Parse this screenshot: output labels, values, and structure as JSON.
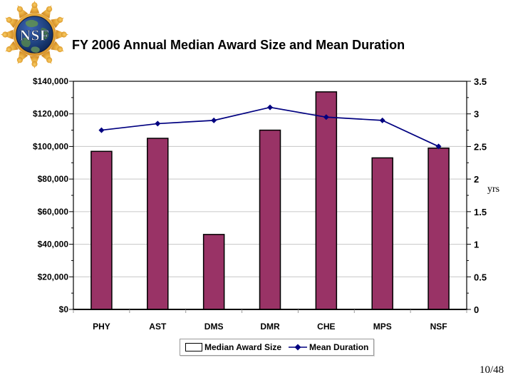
{
  "page": {
    "page_number": "10/48"
  },
  "logo": {
    "name": "nsf-logo",
    "text": "NSF"
  },
  "colors": {
    "bar_fill": "#993366",
    "bar_border": "#000000",
    "line": "#000080",
    "gridline": "#C6C6C6",
    "axis_text": "#000000",
    "logo_gold": "#E2A33B",
    "logo_globe": "#16356F"
  },
  "chart_data": {
    "type": "bar",
    "subtype": "bar-line-combo",
    "title": "FY 2006 Annual Median Award Size and Mean Duration",
    "categories": [
      "PHY",
      "AST",
      "DMS",
      "DMR",
      "CHE",
      "MPS",
      "NSF"
    ],
    "series": [
      {
        "name": "Median Award Size",
        "type": "bar",
        "axis": "left",
        "color": "#993366",
        "values": [
          97000,
          105000,
          46000,
          110000,
          133500,
          93000,
          99000
        ]
      },
      {
        "name": "Mean Duration",
        "type": "line",
        "axis": "right",
        "color": "#000080",
        "marker": "diamond",
        "values": [
          2.75,
          2.85,
          2.9,
          3.1,
          2.95,
          2.9,
          2.5
        ]
      }
    ],
    "left_axis": {
      "min": 0,
      "max": 140000,
      "major_step": 20000,
      "minor_step": 10000,
      "tick_labels": [
        "$0",
        "$20,000",
        "$40,000",
        "$60,000",
        "$80,000",
        "$100,000",
        "$120,000",
        "$140,000"
      ]
    },
    "right_axis": {
      "label": "yrs",
      "min": 0,
      "max": 3.5,
      "major_step": 0.5,
      "minor_step": 0.25,
      "tick_labels": [
        "0",
        "0.5",
        "1",
        "1.5",
        "2",
        "2.5",
        "3",
        "3.5"
      ]
    },
    "grid": true,
    "legend_position": "bottom"
  }
}
